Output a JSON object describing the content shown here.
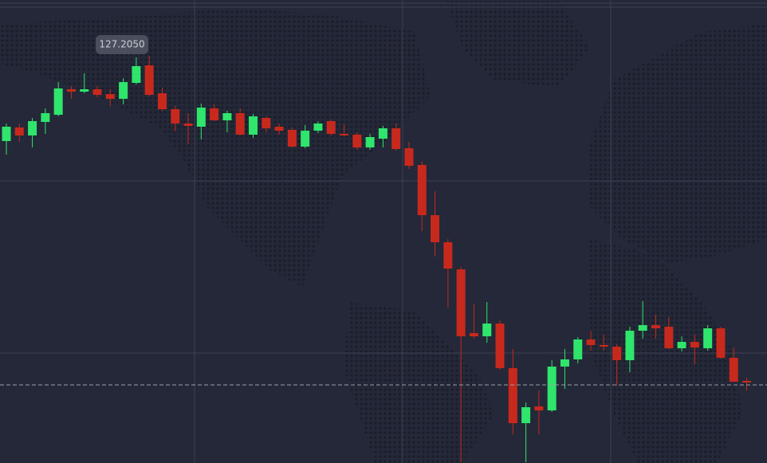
{
  "chart_data": {
    "type": "candlestick",
    "ylim": [
      126.95,
      127.24
    ],
    "up_color": "#2fe56c",
    "down_color": "#c8291d",
    "open": [
      127.1515,
      127.16,
      127.155,
      127.1635,
      127.168,
      127.184,
      127.1825,
      127.184,
      127.181,
      127.178,
      127.188,
      127.199,
      127.1815,
      127.1715,
      127.1625,
      127.1605,
      127.172,
      127.1645,
      127.169,
      127.1555,
      127.166,
      127.1605,
      127.1585,
      127.148,
      127.158,
      127.164,
      127.156,
      127.1555,
      127.1475,
      127.153,
      127.1595,
      127.147,
      127.1365,
      127.105,
      127.088,
      127.071,
      127.031,
      127.029,
      127.037,
      127.009,
      126.9745,
      126.985,
      126.9825,
      127.01,
      127.0145,
      127.027,
      127.0235,
      127.0225,
      127.014,
      127.0325,
      127.036,
      127.035,
      127.0215,
      127.0255,
      127.0215,
      127.034,
      127.0155,
      127.001
    ],
    "high": [
      127.1625,
      127.1625,
      127.166,
      127.172,
      127.1885,
      127.186,
      127.194,
      127.186,
      127.184,
      127.191,
      127.204,
      127.205,
      127.185,
      127.1735,
      127.169,
      127.175,
      127.1745,
      127.1705,
      127.172,
      127.1685,
      127.167,
      127.1625,
      127.16,
      127.1615,
      127.164,
      127.165,
      127.162,
      127.157,
      127.156,
      127.161,
      127.1625,
      127.151,
      127.1385,
      127.12,
      127.09,
      127.0725,
      127.049,
      127.0505,
      127.039,
      127.021,
      126.9875,
      126.995,
      127.014,
      127.021,
      127.0285,
      127.0325,
      127.03,
      127.024,
      127.035,
      127.051,
      127.0425,
      127.041,
      127.029,
      127.03,
      127.036,
      127.035,
      127.022,
      127.003
    ],
    "low": [
      127.143,
      127.151,
      127.1475,
      127.156,
      127.167,
      127.178,
      127.1815,
      127.179,
      127.1735,
      127.1745,
      127.187,
      127.1795,
      127.1705,
      127.1575,
      127.1495,
      127.1525,
      127.164,
      127.157,
      127.155,
      127.1535,
      127.157,
      127.1555,
      127.1475,
      127.147,
      127.1565,
      127.155,
      127.1545,
      127.146,
      127.146,
      127.1475,
      127.1455,
      127.134,
      127.095,
      127.079,
      127.047,
      126.95,
      127.0275,
      127.025,
      127.008,
      126.9675,
      126.95,
      126.9675,
      126.9815,
      126.996,
      127.012,
      127.02,
      127.02,
      126.998,
      127.0065,
      127.0275,
      127.0275,
      127.021,
      127.0195,
      127.0115,
      127.02,
      127.015,
      127.0005,
      126.995
    ],
    "close": [
      127.1605,
      127.155,
      127.164,
      127.169,
      127.1845,
      127.1825,
      127.184,
      127.1805,
      127.178,
      127.1885,
      127.1985,
      127.1805,
      127.1715,
      127.1625,
      127.161,
      127.1725,
      127.1645,
      127.169,
      127.1555,
      127.167,
      127.1595,
      127.158,
      127.148,
      127.158,
      127.1625,
      127.156,
      127.155,
      127.1475,
      127.154,
      127.1595,
      127.1465,
      127.136,
      127.105,
      127.088,
      127.0715,
      127.029,
      127.029,
      127.037,
      127.009,
      126.9745,
      126.9845,
      126.9825,
      127.01,
      127.0145,
      127.027,
      127.0235,
      127.0225,
      127.014,
      127.0325,
      127.036,
      127.034,
      127.0215,
      127.0255,
      127.022,
      127.034,
      127.0155,
      127.0005,
      127.0
    ],
    "annotation": {
      "value": 127.205,
      "label": "127.2050"
    },
    "current_price": 126.9985
  }
}
